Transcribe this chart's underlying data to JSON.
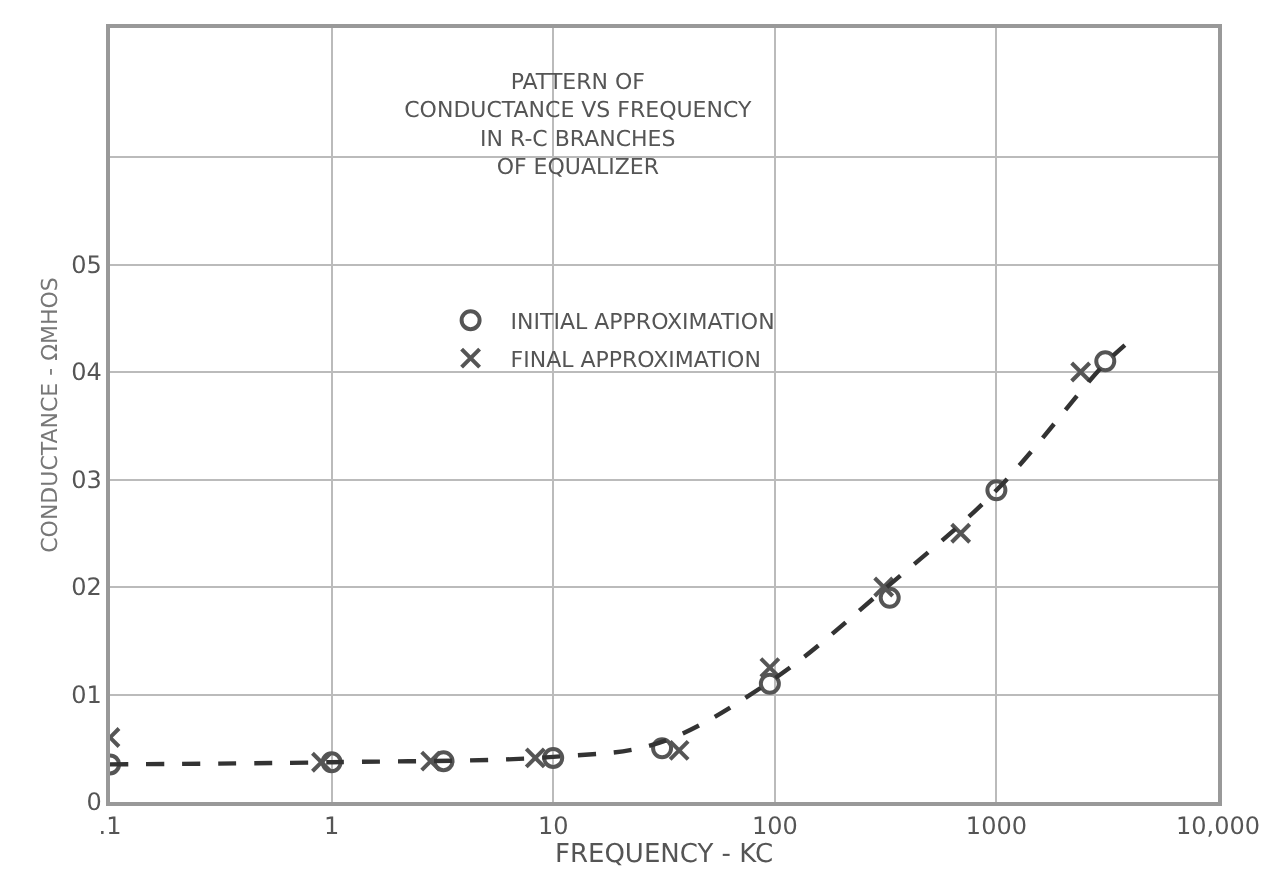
{
  "chart_data": {
    "type": "scatter",
    "title": "PATTERN OF\nCONDUCTANCE VS FREQUENCY\nIN R-C BRANCHES\nOF EQUALIZER",
    "xlabel": "FREQUENCY - KC",
    "ylabel": "CONDUCTANCE - ΩMHOS",
    "log": "x",
    "xlim": [
      0.1,
      10000
    ],
    "xticks": [
      {
        "value": 0.1,
        "label": ".1"
      },
      1,
      10,
      100,
      1000,
      {
        "value": 10000,
        "label": "10,000"
      }
    ],
    "ylim": [
      0,
      7.2
    ],
    "yticks": [
      0,
      {
        "value": 1,
        "label": "01"
      },
      {
        "value": 2,
        "label": "02"
      },
      {
        "value": 3,
        "label": "03"
      },
      {
        "value": 4,
        "label": "04"
      },
      {
        "value": 5,
        "label": "05"
      },
      {
        "value": 6,
        "label": null
      }
    ],
    "grid": true,
    "legend": "top",
    "series": [
      {
        "name": "INITIAL APPROXIMATION",
        "color": "#555555",
        "marker": "circle",
        "x": [
          0.1,
          1,
          3.2,
          10,
          31,
          95,
          330,
          1000,
          3100
        ],
        "values": [
          0.35,
          0.37,
          0.38,
          0.41,
          0.5,
          1.1,
          1.9,
          2.9,
          4.1
        ]
      },
      {
        "name": "FINAL APPROXIMATION",
        "color": "#555555",
        "marker": "cross",
        "x": [
          0.1,
          0.9,
          2.8,
          8.3,
          37,
          95,
          310,
          690,
          2400
        ],
        "values": [
          0.6,
          0.37,
          0.38,
          0.41,
          0.48,
          1.25,
          2.0,
          2.5,
          4.0
        ]
      },
      {
        "type": "line",
        "color": "#333333",
        "line_style": "dashed",
        "marker": "none",
        "x": [
          0.1,
          1,
          10,
          30,
          100,
          300,
          1000,
          3000,
          3800
        ],
        "values": [
          0.35,
          0.37,
          0.42,
          0.55,
          1.15,
          1.95,
          2.9,
          4.05,
          4.25
        ]
      }
    ]
  }
}
